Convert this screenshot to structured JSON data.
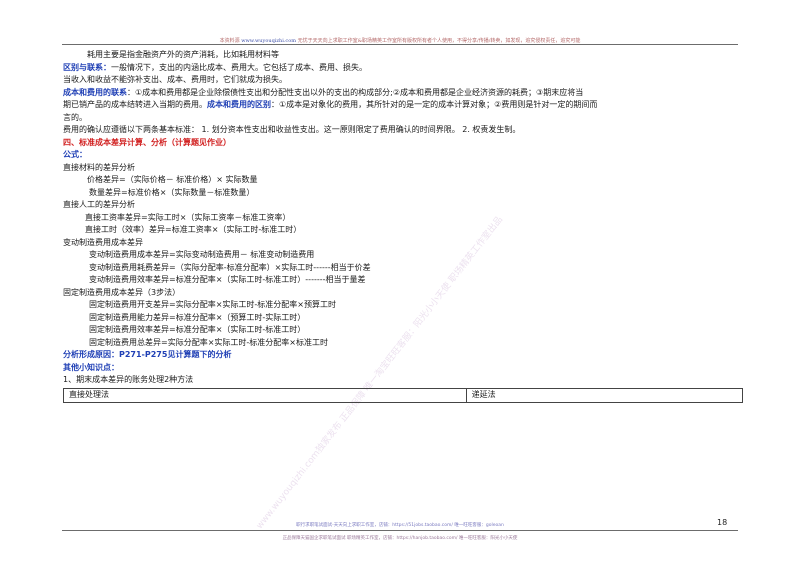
{
  "header": {
    "prefix": "本资料源",
    "url": "www.wuyouqizhi.com",
    "text": "无忧于天天向上求职工作室&职场精英工作室所有版权所有者个人使用，不得分享/传播/转卖，如发现，追究侵权责任，追究可能"
  },
  "content": {
    "line1": "耗用主要是指金融资产外的资产消耗，比如耗用材料等",
    "diff_label": "区别与联系：",
    "diff_text": "一般情况下，支出的内涵比成本、费用大。它包括了成本、费用、损失。",
    "line3": "当收入和收益不能弥补支出、成本、费用时，它们就成为损失。",
    "link_label": "成本和费用的联系",
    "link_text_a": "：①成本和费用都是企业除偿债性支出和分配性支出以外的支出的构成部分;②成本和费用都是企业经济资源的耗费；③期末应将当",
    "link_text_b": "期已销产品的成本结转进入当期的费用。",
    "distinct_label": "成本和费用的区别",
    "distinct_text": "：①成本是对象化的费用，其所针对的是一定的成本计算对象；②费用则是针对一定的期间而",
    "line6": "言的。",
    "line7": "费用的确认应遵循以下两条基本标准：  1. 划分资本性支出和收益性支出。这一原则限定了费用确认的时间界限。  2. 权责发生制。",
    "section_title": "四、标准成本差异计算、分析（计算题见作业）",
    "formula_title": "公式：",
    "dm_title": "直接材料的差异分析",
    "dm_price": "价格差异=（实际价格－ 标准价格）× 实际数量",
    "dm_qty": "数量差异=标准价格×（实际数量－标准数量）",
    "dl_title": "直接人工的差异分析",
    "dl_rate": "直接工资率差异=实际工时×（实际工资率－标准工资率）",
    "dl_eff": "直接工时（效率）差异=标准工资率×（实际工时-标准工时）",
    "vo_title": "变动制造费用成本差异",
    "vo_total": "变动制造费用成本差异=实际变动制造费用－ 标准变动制造费用",
    "vo_spend": "变动制造费用耗费差异=（实际分配率-标准分配率）×实际工时------相当于价差",
    "vo_eff": "变动制造费用效率差异=标准分配率×（实际工时-标准工时）-------相当于量差",
    "fo_title": "固定制造费用成本差异（3步法）",
    "fo_spend": "固定制造费用开支差异=实际分配率×实际工时-标准分配率×预算工时",
    "fo_cap": "固定制造费用能力差异=标准分配率×（预算工时-实际工时）",
    "fo_eff": "固定制造费用效率差异=标准分配率×（实际工时-标准工时）",
    "fo_total": "固定制造费用总差异=实际分配率×实际工时-标准分配率×标准工时",
    "analysis": "分析形成原因：P271-P275见计算题下的分析",
    "other_title": "其他小知识点：",
    "item1": "1、期末成本差异的账务处理2种方法",
    "method_col1": "直接处理法",
    "method_col2": "递延法"
  },
  "page_number": "18",
  "footer": {
    "line1": "职行求职笔试面试-天天向上求职工作室，店铺：https://51jobs.taobao.com/ 唯一旺旺客服：goleoan",
    "line2": "正品保障天猫国企求职笔试面试 职场精英工作室，店铺：https://hanjob.taobao.com/ 唯一旺旺客服：阳光小小天使"
  },
  "watermark": "www.wuyouqizhi.com独家发布  正品保障 唯一淘宝旺旺客服：阳光小小天使  职场精英工作室出品"
}
